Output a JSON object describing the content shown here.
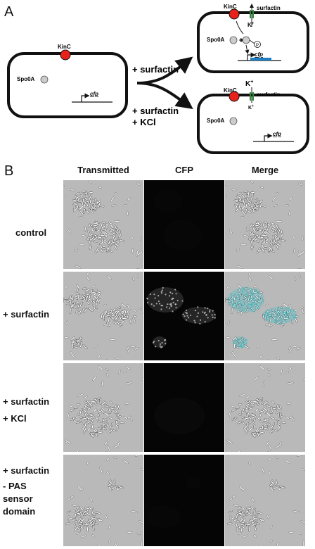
{
  "panelA": {
    "letter": "A",
    "left_cell": {
      "kinase": "KinC",
      "regulator": "Spo0A",
      "reporter": "cfp"
    },
    "treatment_top": "+ surfactin",
    "treatment_bottom_line1": "+ surfactin",
    "treatment_bottom_line2": "+ KCl",
    "top_cell": {
      "kinase": "KinC",
      "ligand": "surfactin",
      "ion": "K",
      "ion_sup": "+",
      "regulator": "Spo0A",
      "phospho": "P",
      "reporter": "cfp"
    },
    "bottom_cell": {
      "kinase": "KinC",
      "ligand": "surfactin",
      "ion": "K",
      "ion_sup": "+",
      "ion_lower": "K",
      "ion_lower_sup": "+",
      "regulator": "Spo0A",
      "reporter": "cfp"
    },
    "colors": {
      "kinase": "#e8221b",
      "channel": "#2e8b3a",
      "cfp_bar": "#1c7fc6",
      "regulator": "#cccccc"
    }
  },
  "panelB": {
    "letter": "B",
    "columns": [
      "Transmitted",
      "CFP",
      "Merge"
    ],
    "rows": [
      {
        "label_lines": [
          "control"
        ]
      },
      {
        "label_lines": [
          "+ surfactin"
        ]
      },
      {
        "label_lines": [
          "+ surfactin",
          "+ KCl"
        ]
      },
      {
        "label_lines": [
          "+ surfactin",
          "- PAS",
          "sensor",
          "domain"
        ]
      }
    ]
  }
}
